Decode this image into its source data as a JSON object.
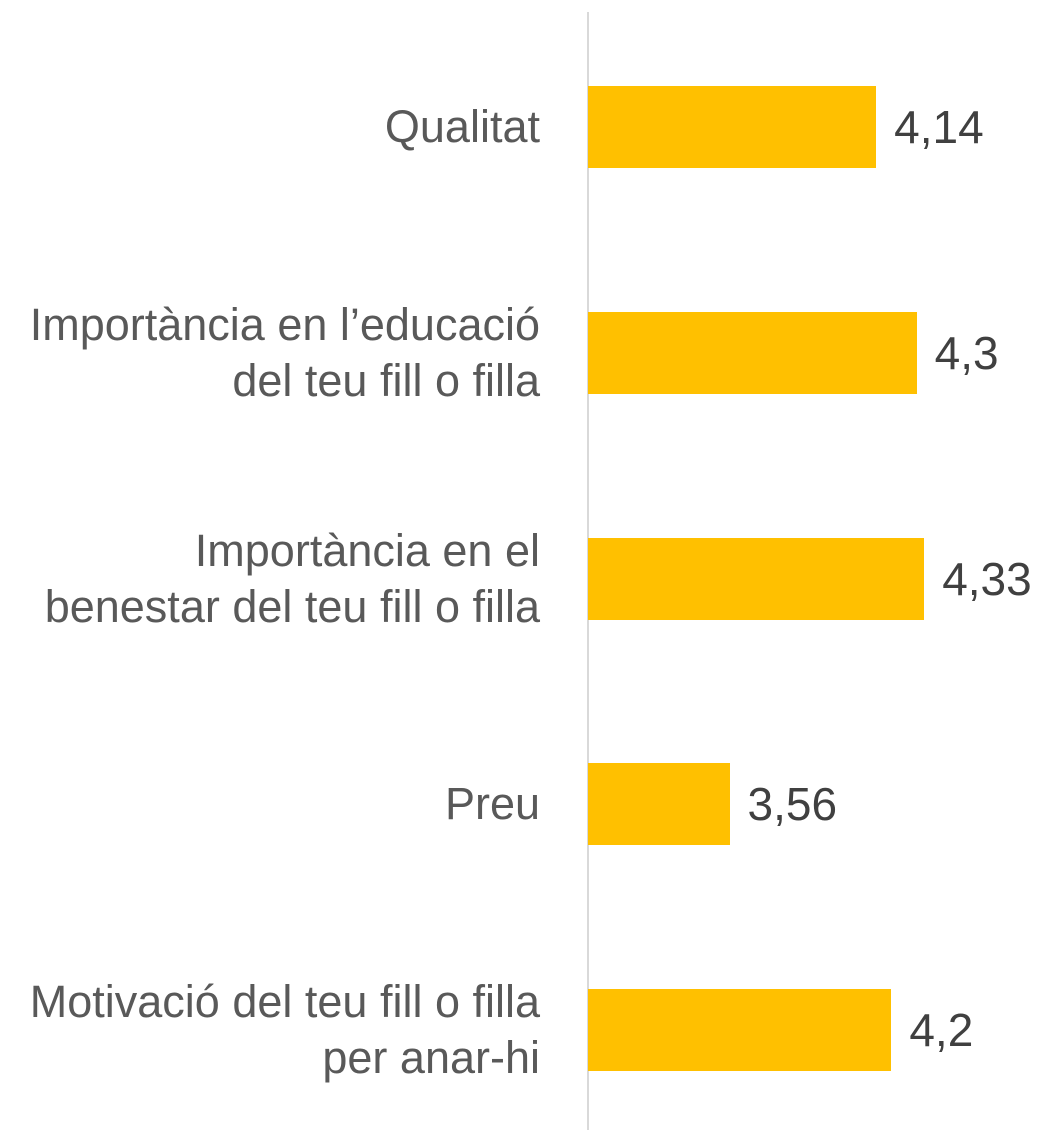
{
  "chart_data": {
    "type": "bar",
    "orientation": "horizontal",
    "categories": [
      "Qualitat",
      "Importància en l’educació del teu fill o filla",
      "Importància en el benestar del teu fill o filla",
      "Preu",
      "Motivació del teu fill o filla per anar-hi"
    ],
    "values": [
      4.14,
      4.3,
      4.33,
      3.56,
      4.2
    ],
    "value_labels": [
      "4,14",
      "4,3",
      "4,33",
      "3,56",
      "4,2"
    ],
    "color": "#ffc000",
    "xlim": [
      3,
      4.8
    ]
  }
}
